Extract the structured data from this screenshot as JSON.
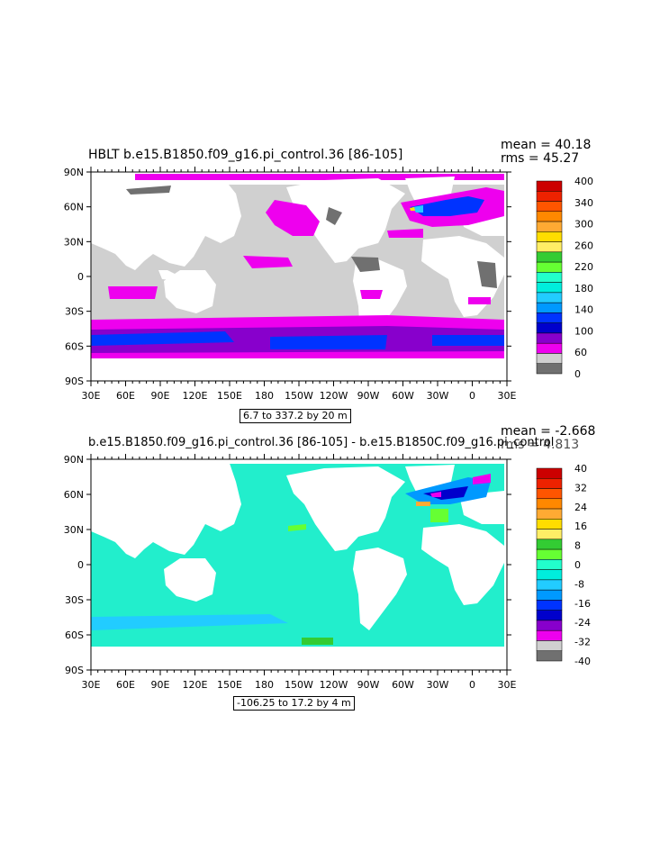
{
  "panels": [
    {
      "title": "HBLT b.e15.B1850.f09_g16.pi_control.36 [86-105]",
      "mean": "mean = 40.18",
      "rms": "rms = 45.27",
      "range_label": "6.7 to 337.2 by 20 m",
      "colorbar_labels": [
        "400",
        "340",
        "300",
        "260",
        "220",
        "180",
        "140",
        "100",
        "60",
        "0"
      ]
    },
    {
      "title": "b.e15.B1850.f09_g16.pi_control.36 [86-105] - b.e15.B1850C.f09_g16.pi_control",
      "mean": "mean = -2.668",
      "rms": "rms = 4.813",
      "range_label": "-106.25 to 17.2 by 4 m",
      "colorbar_labels": [
        "40",
        "32",
        "24",
        "16",
        "8",
        "0",
        "-8",
        "-16",
        "-24",
        "-32",
        "-40"
      ]
    }
  ],
  "axes": {
    "lat_labels": [
      "90N",
      "60N",
      "30N",
      "0",
      "30S",
      "60S",
      "90S"
    ],
    "lon_labels": [
      "30E",
      "60E",
      "90E",
      "120E",
      "150E",
      "180",
      "150W",
      "120W",
      "90W",
      "60W",
      "30W",
      "0",
      "30E"
    ]
  },
  "colorbars": {
    "top": [
      "#cc0000",
      "#ee2200",
      "#ff5500",
      "#ff8800",
      "#ffaa33",
      "#ffdd00",
      "#ffee66",
      "#33cc33",
      "#66ff33",
      "#22ffcc",
      "#00eedd",
      "#22ccff",
      "#0099ff",
      "#0033ff",
      "#0000cc",
      "#8800cc",
      "#ee00ee",
      "#d0d0d0",
      "#707070"
    ],
    "bottom": [
      "#cc0000",
      "#ee2200",
      "#ff5500",
      "#ff8800",
      "#ffaa33",
      "#ffdd00",
      "#ffee66",
      "#33cc33",
      "#66ff33",
      "#22ffcc",
      "#00eedd",
      "#22ccff",
      "#0099ff",
      "#0033ff",
      "#0000cc",
      "#8800cc",
      "#ee00ee",
      "#d0d0d0",
      "#707070"
    ]
  },
  "colors": {
    "land": "#ffffff",
    "ocean_top": "#d0d0d0",
    "ocean_bottom": "#22eecc",
    "deep_mixing": "#0033ff",
    "magenta": "#ee00ee",
    "purple": "#8800cc",
    "dark_gray": "#707070"
  }
}
